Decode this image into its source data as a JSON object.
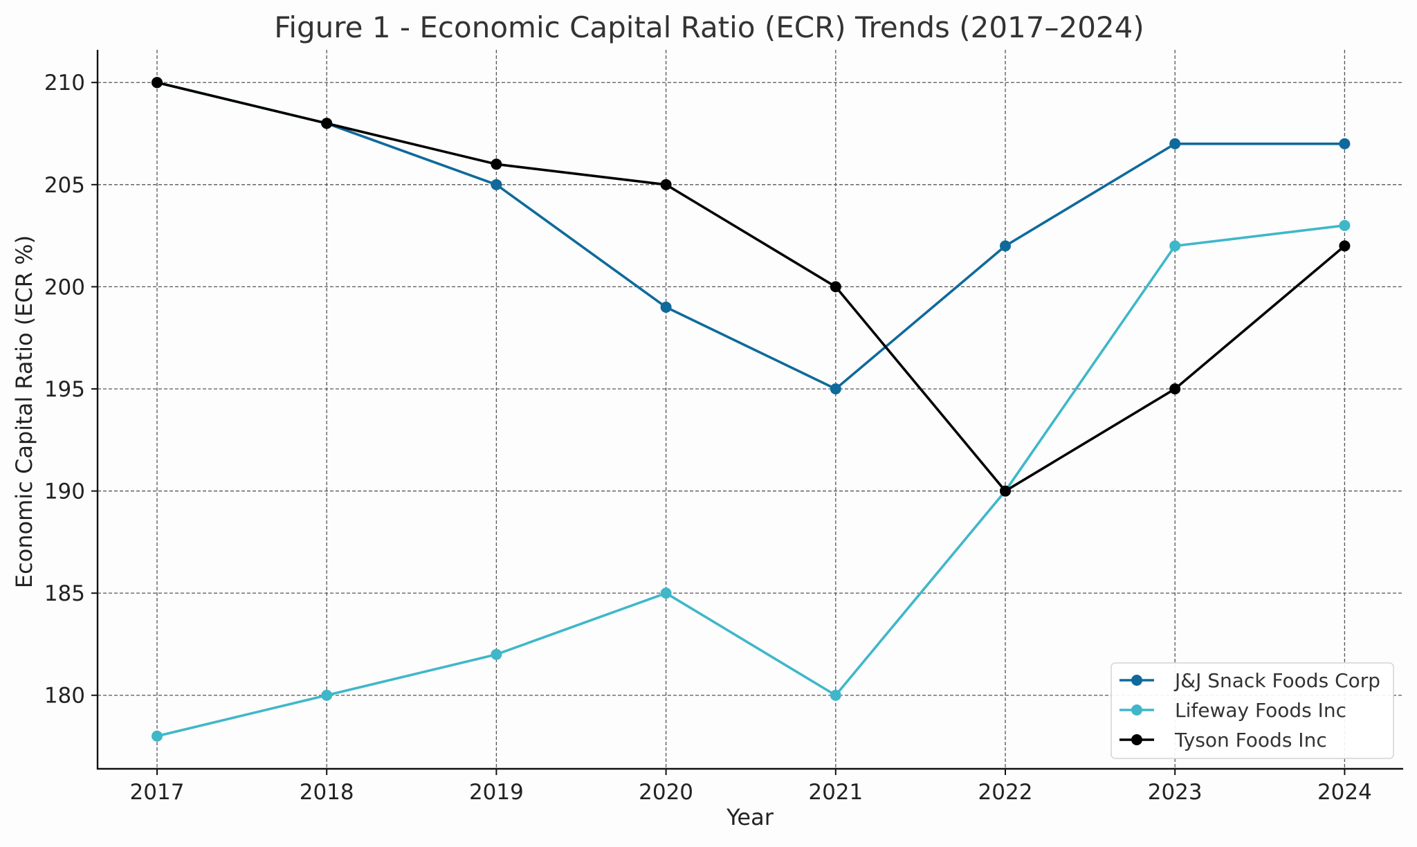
{
  "chart_data": {
    "type": "line",
    "title": "Figure 1 - Economic Capital Ratio (ECR) Trends (2017–2024)",
    "xlabel": "Year",
    "ylabel": "Economic Capital Ratio (ECR %)",
    "categories": [
      "2017",
      "2018",
      "2019",
      "2020",
      "2021",
      "2022",
      "2023",
      "2024"
    ],
    "ylim": [
      176.4,
      211.6
    ],
    "yticks": [
      180,
      185,
      190,
      195,
      200,
      205,
      210
    ],
    "grid": true,
    "legend_position": "bottom-right",
    "series": [
      {
        "name": "J&J Snack Foods Corp",
        "color": "#0f6a9b",
        "values": [
          210,
          208,
          205,
          199,
          195,
          202,
          207,
          207
        ]
      },
      {
        "name": "Lifeway Foods Inc",
        "color": "#3fb7c9",
        "values": [
          178,
          180,
          182,
          185,
          180,
          190,
          202,
          203
        ]
      },
      {
        "name": "Tyson Foods Inc",
        "color": "#000000",
        "values": [
          210,
          208,
          206,
          205,
          200,
          190,
          195,
          202
        ]
      }
    ]
  }
}
